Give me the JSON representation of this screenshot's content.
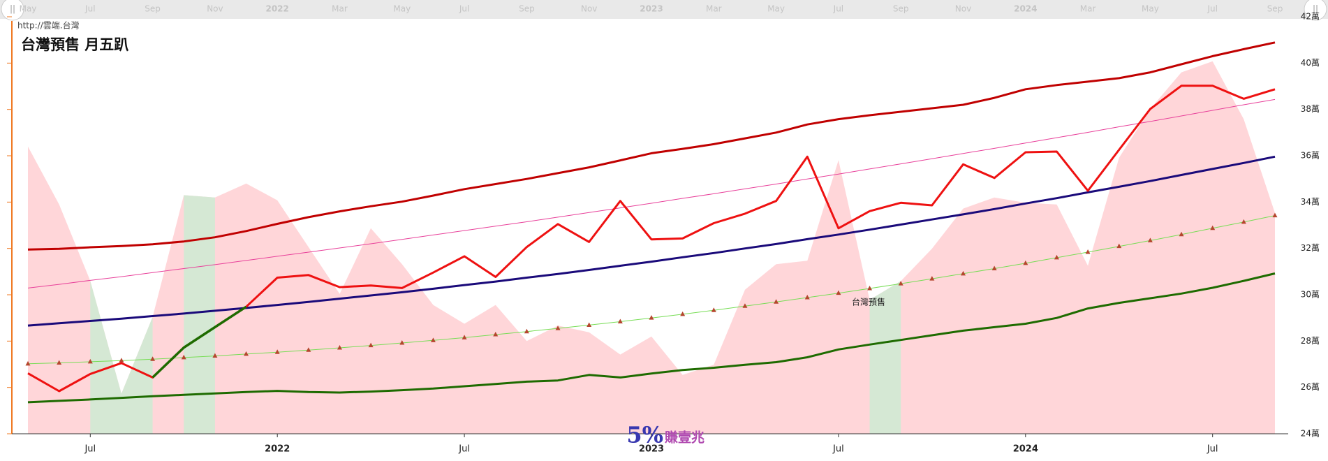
{
  "chart_data": {
    "type": "line",
    "title": "台灣預售 月五趴",
    "source": "http://雲端.台灣",
    "annotation": "台灣預售",
    "watermark": [
      "5%",
      "賺壹兆"
    ],
    "categories": [
      "May",
      null,
      "Jul",
      null,
      "Sep",
      null,
      "Nov",
      null,
      "2022",
      null,
      "Mar",
      null,
      "May",
      null,
      "Jul",
      null,
      "Sep",
      null,
      "Nov",
      null,
      "2023",
      null,
      "Mar",
      null,
      "May",
      null,
      "Jul",
      null,
      "Sep",
      null,
      "Nov",
      null,
      "2024",
      null,
      "Mar",
      null,
      "May",
      null,
      "Jul",
      null,
      "Sep"
    ],
    "xticks": [
      2,
      8,
      14,
      20,
      26,
      32,
      38
    ],
    "ylim": [
      24,
      42
    ],
    "yticks": [
      {
        "value": 24,
        "label": "24萬"
      },
      {
        "value": 26,
        "label": "26萬"
      },
      {
        "value": 28,
        "label": "28萬"
      },
      {
        "value": 30,
        "label": "30萬"
      },
      {
        "value": 32,
        "label": "32萬"
      },
      {
        "value": 34,
        "label": "34萬"
      },
      {
        "value": 36,
        "label": "36萬"
      },
      {
        "value": 38,
        "label": "38萬"
      },
      {
        "value": 40,
        "label": "40萬"
      },
      {
        "value": 42,
        "label": "42萬"
      }
    ],
    "grid": false,
    "series": [
      {
        "kind": "area",
        "color": "#ffd6d9",
        "highlight_color": "#d5e8d4",
        "highlights": [
          [
            2,
            4
          ],
          [
            5,
            6
          ],
          [
            27,
            28
          ]
        ],
        "values": [
          36.4,
          33.9,
          30.6,
          25.73,
          29.04,
          34.3,
          34.2,
          34.8,
          34.08,
          32.06,
          30.04,
          32.87,
          31.32,
          29.56,
          28.75,
          29.56,
          28.0,
          28.67,
          28.38,
          27.42,
          28.2,
          26.54,
          26.98,
          30.22,
          31.32,
          31.47,
          35.81,
          29.78,
          30.59,
          31.99,
          33.72,
          34.2,
          33.97,
          33.9,
          31.25,
          35.92,
          38.02,
          39.6,
          40.08,
          37.58,
          33.53
        ]
      },
      {
        "kind": "line",
        "color": "#c00000",
        "width": 3,
        "values": [
          31.95,
          31.98,
          32.05,
          32.1,
          32.18,
          32.3,
          32.48,
          32.75,
          33.06,
          33.35,
          33.6,
          33.82,
          34.02,
          34.28,
          34.56,
          34.78,
          35.0,
          35.25,
          35.5,
          35.8,
          36.11,
          36.3,
          36.5,
          36.75,
          37.0,
          37.35,
          37.58,
          37.75,
          37.9,
          38.05,
          38.2,
          38.5,
          38.87,
          39.05,
          39.2,
          39.35,
          39.6,
          39.95,
          40.3,
          40.6,
          40.89
        ]
      },
      {
        "kind": "line",
        "color": "#e8409a",
        "width": 1,
        "values": [
          30.29,
          30.45,
          30.62,
          30.78,
          30.96,
          31.13,
          31.3,
          31.48,
          31.66,
          31.84,
          32.02,
          32.2,
          32.39,
          32.58,
          32.77,
          32.96,
          33.15,
          33.35,
          33.55,
          33.75,
          33.95,
          34.16,
          34.36,
          34.57,
          34.78,
          35.0,
          35.21,
          35.43,
          35.65,
          35.87,
          36.1,
          36.32,
          36.55,
          36.78,
          37.01,
          37.25,
          37.48,
          37.72,
          37.96,
          38.2,
          38.43
        ]
      },
      {
        "kind": "line",
        "color": "#1a0a7a",
        "width": 3,
        "values": [
          28.67,
          28.77,
          28.87,
          28.97,
          29.08,
          29.19,
          29.31,
          29.43,
          29.56,
          29.69,
          29.83,
          29.97,
          30.11,
          30.26,
          30.42,
          30.57,
          30.74,
          30.9,
          31.07,
          31.25,
          31.43,
          31.62,
          31.8,
          32.0,
          32.19,
          32.4,
          32.6,
          32.81,
          33.03,
          33.25,
          33.47,
          33.7,
          33.94,
          34.17,
          34.42,
          34.66,
          34.91,
          35.17,
          35.43,
          35.69,
          35.96
        ]
      },
      {
        "kind": "line",
        "color": "#77dd55",
        "width": 1,
        "marker": "triangle",
        "marker_color": "#b5462e",
        "values": [
          27.02,
          27.06,
          27.11,
          27.16,
          27.22,
          27.29,
          27.36,
          27.44,
          27.52,
          27.61,
          27.71,
          27.81,
          27.92,
          28.03,
          28.15,
          28.28,
          28.41,
          28.55,
          28.69,
          28.84,
          29.0,
          29.16,
          29.33,
          29.51,
          29.69,
          29.88,
          30.07,
          30.27,
          30.48,
          30.69,
          30.91,
          31.13,
          31.36,
          31.6,
          31.84,
          32.09,
          32.34,
          32.6,
          32.87,
          33.14,
          33.42
        ]
      },
      {
        "kind": "line",
        "color": "#1e6b00",
        "width": 3,
        "values": [
          25.36,
          25.42,
          25.48,
          25.55,
          25.62,
          25.68,
          25.74,
          25.8,
          25.85,
          25.8,
          25.78,
          25.82,
          25.88,
          25.95,
          26.05,
          26.15,
          26.25,
          26.3,
          26.54,
          26.43,
          26.6,
          26.75,
          26.85,
          26.98,
          27.09,
          27.3,
          27.64,
          27.85,
          28.05,
          28.25,
          28.45,
          28.6,
          28.75,
          29.0,
          29.41,
          29.65,
          29.85,
          30.05,
          30.3,
          30.6,
          30.92
        ]
      },
      {
        "kind": "line",
        "color": "#ee1111",
        "width": 3,
        "segments": [
          {
            "from": 4,
            "to": 7,
            "color": "#1e6b00"
          }
        ],
        "values": [
          26.61,
          25.84,
          26.58,
          27.05,
          26.43,
          27.72,
          28.6,
          29.48,
          30.74,
          30.85,
          30.33,
          30.4,
          30.29,
          30.96,
          31.66,
          30.77,
          32.06,
          33.05,
          32.28,
          34.05,
          32.39,
          32.43,
          33.09,
          33.5,
          34.05,
          35.96,
          32.87,
          33.61,
          33.97,
          33.86,
          35.63,
          35.04,
          36.15,
          36.18,
          34.49,
          36.26,
          38.02,
          39.02,
          39.02,
          38.46,
          38.87
        ]
      }
    ]
  }
}
